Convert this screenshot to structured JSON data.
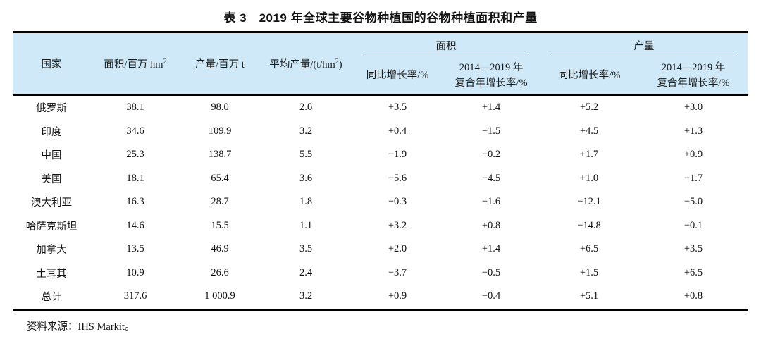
{
  "title": "表 3　2019 年全球主要谷物种植国的谷物种植面积和产量",
  "colors": {
    "header_bg": "#cfe9f8",
    "border": "#000000",
    "text": "#111111"
  },
  "table": {
    "header": {
      "country": "国家",
      "area_unit_text": "面积/百万 hm",
      "sup2": "2",
      "production_unit": "产量/百万 t",
      "avg_yield_pre": "平均产量/(t/hm",
      "avg_yield_post": ")",
      "group_area": "面积",
      "group_production": "产量",
      "yoy": "同比增长率/%",
      "cagr_line1": "2014—2019 年",
      "cagr_line2": "复合年增长率/%"
    },
    "rows": [
      {
        "country": "俄罗斯",
        "area": "38.1",
        "production": "98.0",
        "avg_yield": "2.6",
        "area_yoy": "+3.5",
        "area_cagr": "+1.4",
        "prod_yoy": "+5.2",
        "prod_cagr": "+3.0"
      },
      {
        "country": "印度",
        "area": "34.6",
        "production": "109.9",
        "avg_yield": "3.2",
        "area_yoy": "+0.4",
        "area_cagr": "−1.5",
        "prod_yoy": "+4.5",
        "prod_cagr": "+1.3"
      },
      {
        "country": "中国",
        "area": "25.3",
        "production": "138.7",
        "avg_yield": "5.5",
        "area_yoy": "−1.9",
        "area_cagr": "−0.2",
        "prod_yoy": "+1.7",
        "prod_cagr": "+0.9"
      },
      {
        "country": "美国",
        "area": "18.1",
        "production": "65.4",
        "avg_yield": "3.6",
        "area_yoy": "−5.6",
        "area_cagr": "−4.5",
        "prod_yoy": "+1.0",
        "prod_cagr": "−1.7"
      },
      {
        "country": "澳大利亚",
        "area": "16.3",
        "production": "28.7",
        "avg_yield": "1.8",
        "area_yoy": "−0.3",
        "area_cagr": "−1.6",
        "prod_yoy": "−12.1",
        "prod_cagr": "−5.0"
      },
      {
        "country": "哈萨克斯坦",
        "area": "14.6",
        "production": "15.5",
        "avg_yield": "1.1",
        "area_yoy": "+3.2",
        "area_cagr": "+0.8",
        "prod_yoy": "−14.8",
        "prod_cagr": "−0.1"
      },
      {
        "country": "加拿大",
        "area": "13.5",
        "production": "46.9",
        "avg_yield": "3.5",
        "area_yoy": "+2.0",
        "area_cagr": "+1.4",
        "prod_yoy": "+6.5",
        "prod_cagr": "+3.5"
      },
      {
        "country": "土耳其",
        "area": "10.9",
        "production": "26.6",
        "avg_yield": "2.4",
        "area_yoy": "−3.7",
        "area_cagr": "−0.5",
        "prod_yoy": "+1.5",
        "prod_cagr": "+6.5"
      },
      {
        "country": "总计",
        "area": "317.6",
        "production": "1 000.9",
        "avg_yield": "3.2",
        "area_yoy": "+0.9",
        "area_cagr": "−0.4",
        "prod_yoy": "+5.1",
        "prod_cagr": "+0.8"
      }
    ]
  },
  "source": "资料来源：IHS Markit。"
}
